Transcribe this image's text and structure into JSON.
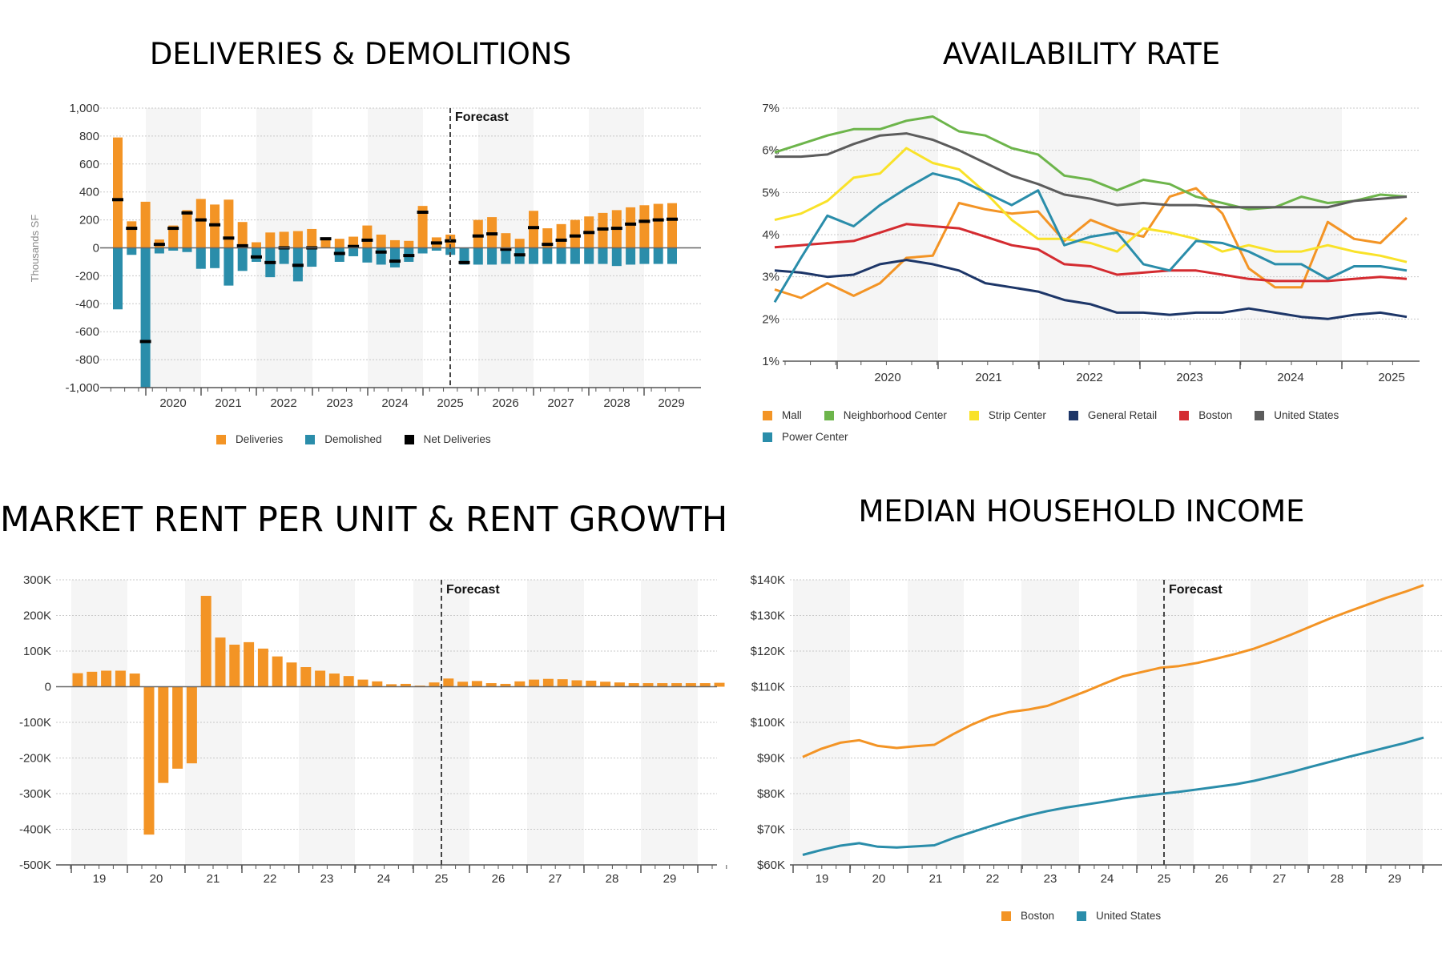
{
  "chart_data": [
    {
      "id": "deliveries",
      "type": "bar",
      "title": "DELIVERIES & DEMOLITIONS",
      "ylabel": "Thousands SF",
      "xlabel": "",
      "ylim": [
        -1000,
        1000
      ],
      "yticks": [
        "1,000",
        "800",
        "600",
        "400",
        "200",
        "0",
        "-200",
        "-400",
        "-600",
        "-800",
        "-1,000"
      ],
      "xticks": [
        "2020",
        "2021",
        "2022",
        "2023",
        "2024",
        "2025",
        "2026",
        "2027",
        "2028",
        "2029"
      ],
      "forecast_label": "Forecast",
      "series": [
        {
          "name": "Deliveries",
          "color": "#F39425",
          "values": [
            790,
            190,
            330,
            60,
            160,
            270,
            350,
            310,
            345,
            185,
            40,
            110,
            115,
            120,
            135,
            70,
            65,
            80,
            160,
            95,
            55,
            50,
            300,
            75,
            95,
            0,
            200,
            220,
            105,
            65,
            265,
            140,
            170,
            200,
            225,
            250,
            270,
            290,
            305,
            315,
            320
          ]
        },
        {
          "name": "Demolished",
          "color": "#2A8DAA",
          "values": [
            -440,
            -50,
            -1000,
            -40,
            -20,
            -30,
            -150,
            -145,
            -270,
            -165,
            -100,
            -210,
            -115,
            -240,
            -135,
            0,
            -100,
            -60,
            -105,
            -120,
            -140,
            -100,
            -40,
            -20,
            -50,
            -120,
            -120,
            -120,
            -115,
            -115,
            -115,
            -115,
            -115,
            -115,
            -115,
            -115,
            -130,
            -120,
            -115,
            -115,
            -115
          ]
        },
        {
          "name": "Net Deliveries",
          "color": "#000000",
          "values": [
            345,
            140,
            -670,
            25,
            140,
            250,
            200,
            165,
            70,
            15,
            -65,
            -105,
            0,
            -125,
            0,
            65,
            -40,
            10,
            55,
            -30,
            -95,
            -55,
            255,
            35,
            50,
            -105,
            85,
            100,
            -10,
            -50,
            145,
            25,
            55,
            85,
            110,
            135,
            140,
            170,
            190,
            200,
            205
          ]
        }
      ],
      "legend": [
        "Deliveries",
        "Demolished",
        "Net Deliveries"
      ]
    },
    {
      "id": "availability",
      "type": "line",
      "title": "AVAILABILITY RATE",
      "ylim": [
        1,
        7
      ],
      "yticks": [
        "7%",
        "6%",
        "5%",
        "4%",
        "3%",
        "2%",
        "1%"
      ],
      "xticks": [
        "2020",
        "2021",
        "2022",
        "2023",
        "2024",
        "2025"
      ],
      "series": [
        {
          "name": "Mall",
          "color": "#F39425",
          "values": [
            2.7,
            2.5,
            2.85,
            2.55,
            2.85,
            3.45,
            3.5,
            4.75,
            4.6,
            4.5,
            4.55,
            3.85,
            4.35,
            4.1,
            3.95,
            4.9,
            5.1,
            4.5,
            3.2,
            2.75,
            2.75,
            4.3,
            3.9,
            3.8,
            4.4
          ]
        },
        {
          "name": "Neighborhood Center",
          "color": "#6DB54B",
          "values": [
            5.95,
            6.15,
            6.35,
            6.5,
            6.5,
            6.7,
            6.8,
            6.45,
            6.35,
            6.05,
            5.9,
            5.4,
            5.3,
            5.05,
            5.3,
            5.2,
            4.9,
            4.75,
            4.6,
            4.65,
            4.9,
            4.75,
            4.8,
            4.95,
            4.9
          ]
        },
        {
          "name": "Strip Center",
          "color": "#F9E229",
          "values": [
            4.35,
            4.5,
            4.8,
            5.35,
            5.45,
            6.05,
            5.7,
            5.55,
            5.0,
            4.35,
            3.9,
            3.9,
            3.8,
            3.6,
            4.15,
            4.05,
            3.9,
            3.6,
            3.75,
            3.6,
            3.6,
            3.75,
            3.6,
            3.5,
            3.35
          ]
        },
        {
          "name": "General Retail",
          "color": "#1D3668",
          "values": [
            3.15,
            3.1,
            3.0,
            3.05,
            3.3,
            3.4,
            3.3,
            3.15,
            2.85,
            2.75,
            2.65,
            2.45,
            2.35,
            2.15,
            2.15,
            2.1,
            2.15,
            2.15,
            2.25,
            2.15,
            2.05,
            2.0,
            2.1,
            2.15,
            2.05
          ]
        },
        {
          "name": "Boston",
          "color": "#D42B30",
          "values": [
            3.7,
            3.75,
            3.8,
            3.85,
            4.05,
            4.25,
            4.2,
            4.15,
            3.95,
            3.75,
            3.65,
            3.3,
            3.25,
            3.05,
            3.1,
            3.15,
            3.15,
            3.05,
            2.95,
            2.9,
            2.9,
            2.9,
            2.95,
            3.0,
            2.95
          ]
        },
        {
          "name": "United States",
          "color": "#5C5C5C",
          "values": [
            5.85,
            5.85,
            5.9,
            6.15,
            6.35,
            6.4,
            6.25,
            6.0,
            5.7,
            5.4,
            5.2,
            4.95,
            4.85,
            4.7,
            4.75,
            4.7,
            4.7,
            4.65,
            4.65,
            4.65,
            4.65,
            4.65,
            4.8,
            4.85,
            4.9
          ]
        },
        {
          "name": "Power Center",
          "color": "#2A8DAA",
          "values": [
            2.4,
            3.45,
            4.45,
            4.2,
            4.7,
            5.1,
            5.45,
            5.3,
            5.0,
            4.7,
            5.05,
            3.75,
            3.95,
            4.05,
            3.3,
            3.15,
            3.85,
            3.8,
            3.6,
            3.3,
            3.3,
            2.95,
            3.25,
            3.25,
            3.15
          ]
        }
      ],
      "legend": [
        "Mall",
        "Neighborhood Center",
        "Strip Center",
        "General Retail",
        "Boston",
        "United States",
        "Power Center"
      ]
    },
    {
      "id": "rent",
      "type": "bar",
      "title": "MARKET RENT PER UNIT & RENT GROWTH",
      "ylim": [
        -500000,
        300000
      ],
      "yticks": [
        "300K",
        "200K",
        "100K",
        "0",
        "-100K",
        "-200K",
        "-300K",
        "-400K",
        "-500K"
      ],
      "xticks": [
        "19",
        "20",
        "21",
        "22",
        "23",
        "24",
        "25",
        "26",
        "27",
        "28",
        "29"
      ],
      "forecast_label": "Forecast",
      "series": [
        {
          "name": "Rent Growth",
          "color": "#F39425",
          "values": [
            38000,
            42000,
            45000,
            45000,
            37000,
            -415000,
            -270000,
            -230000,
            -215000,
            255000,
            138000,
            118000,
            125000,
            107000,
            85000,
            68000,
            55000,
            45000,
            37000,
            30000,
            20000,
            15000,
            7000,
            8000,
            3000,
            12000,
            23000,
            14000,
            16000,
            10000,
            8000,
            15000,
            20000,
            22000,
            21000,
            18000,
            17000,
            14000,
            12000,
            10000,
            10000,
            10000,
            10000,
            10000,
            10000,
            11000
          ]
        }
      ]
    },
    {
      "id": "income",
      "type": "line",
      "title": "MEDIAN HOUSEHOLD INCOME",
      "ylim": [
        60000,
        140000
      ],
      "yticks": [
        "$140K",
        "$130K",
        "$120K",
        "$110K",
        "$100K",
        "$90K",
        "$80K",
        "$70K",
        "$60K"
      ],
      "xticks": [
        "19",
        "20",
        "21",
        "22",
        "23",
        "24",
        "25",
        "26",
        "27",
        "28",
        "29"
      ],
      "forecast_label": "Forecast",
      "series": [
        {
          "name": "Boston",
          "color": "#F39425",
          "values": [
            90300,
            92600,
            94300,
            95000,
            93400,
            92800,
            93300,
            93700,
            96700,
            99400,
            101600,
            102900,
            103600,
            104600,
            106600,
            108600,
            110800,
            112900,
            114100,
            115300,
            115800,
            116700,
            117900,
            119200,
            120700,
            122600,
            124700,
            126900,
            129100,
            131100,
            133000,
            134900,
            136600,
            138500
          ]
        },
        {
          "name": "United States",
          "color": "#2A8DAA",
          "values": [
            62800,
            64200,
            65400,
            66100,
            65100,
            64900,
            65200,
            65500,
            67500,
            69200,
            70900,
            72500,
            73900,
            75100,
            76100,
            76900,
            77700,
            78600,
            79300,
            79900,
            80500,
            81200,
            81900,
            82600,
            83600,
            84800,
            86100,
            87500,
            88900,
            90300,
            91600,
            92900,
            94200,
            95700
          ]
        }
      ],
      "legend": [
        "Boston",
        "United States"
      ]
    }
  ]
}
